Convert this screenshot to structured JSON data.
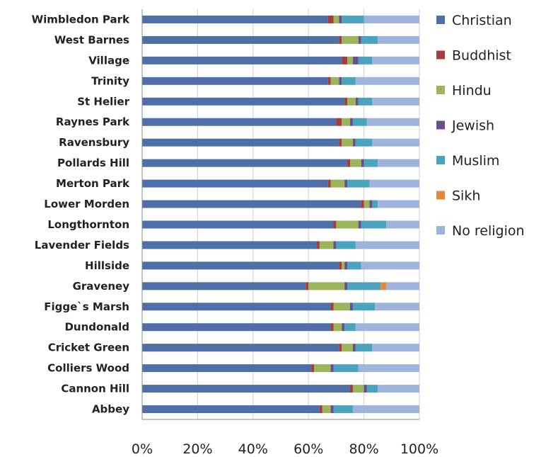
{
  "chart_data": {
    "type": "bar",
    "orientation": "horizontal",
    "stacked": true,
    "stack_mode": "percent",
    "title": "",
    "xlabel": "",
    "ylabel": "",
    "xlim": [
      0,
      100
    ],
    "x_ticks": [
      "0%",
      "20%",
      "40%",
      "60%",
      "80%",
      "100%"
    ],
    "grid": true,
    "legend_position": "right",
    "categories": [
      "Wimbledon Park",
      "West Barnes",
      "Village",
      "Trinity",
      "St Helier",
      "Raynes Park",
      "Ravensbury",
      "Pollards Hill",
      "Merton Park",
      "Lower Morden",
      "Longthornton",
      "Lavender Fields",
      "Hillside",
      "Graveney",
      "Figge`s Marsh",
      "Dundonald",
      "Cricket Green",
      "Colliers Wood",
      "Cannon Hill",
      "Abbey"
    ],
    "series": [
      {
        "name": "Christian",
        "color": "#4F6FA8",
        "values": [
          67,
          71,
          72,
          67,
          73,
          70,
          71,
          74,
          67,
          79,
          69,
          63,
          71,
          59,
          68,
          68,
          71,
          61,
          75,
          64
        ]
      },
      {
        "name": "Buddhist",
        "color": "#A83B3B",
        "values": [
          2,
          1,
          2,
          1,
          1,
          2,
          1,
          1,
          1,
          1,
          1,
          1,
          1,
          1,
          1,
          1,
          1,
          1,
          1,
          1
        ]
      },
      {
        "name": "Hindu",
        "color": "#9BB55A",
        "values": [
          2,
          6,
          2,
          3,
          3,
          3,
          4,
          4,
          5,
          2,
          8,
          5,
          1,
          13,
          6,
          3,
          4,
          6,
          4,
          3
        ]
      },
      {
        "name": "Jewish",
        "color": "#6A4F8E",
        "values": [
          1,
          1,
          2,
          1,
          1,
          1,
          1,
          1,
          1,
          1,
          1,
          1,
          1,
          1,
          1,
          1,
          1,
          1,
          1,
          1
        ]
      },
      {
        "name": "Muslim",
        "color": "#4AA4BF",
        "values": [
          8,
          6,
          5,
          5,
          5,
          5,
          6,
          5,
          8,
          2,
          9,
          7,
          5,
          12,
          8,
          4,
          6,
          9,
          4,
          7
        ]
      },
      {
        "name": "Sikh",
        "color": "#E08A3A",
        "values": [
          0,
          0,
          0,
          0,
          0,
          0,
          0,
          0,
          0,
          0,
          0,
          0,
          0,
          2,
          0,
          0,
          0,
          0,
          0,
          0
        ]
      },
      {
        "name": "No religion",
        "color": "#9FB4DC",
        "values": [
          20,
          15,
          17,
          23,
          17,
          19,
          17,
          15,
          18,
          15,
          12,
          23,
          21,
          12,
          16,
          23,
          17,
          22,
          15,
          24
        ]
      }
    ]
  }
}
